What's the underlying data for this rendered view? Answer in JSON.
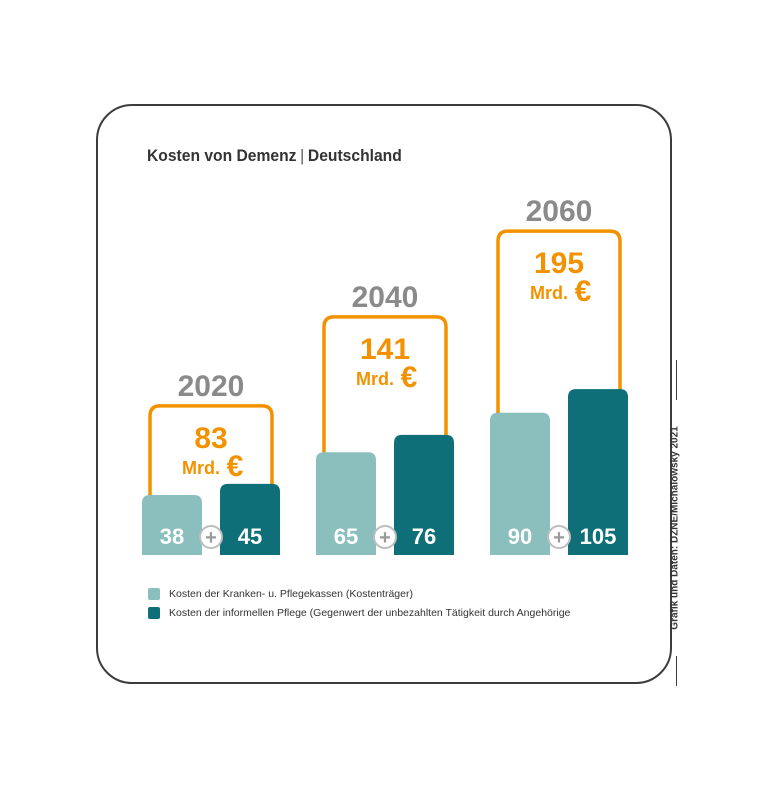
{
  "title": {
    "left": "Kosten von Demenz",
    "separator": "|",
    "right": "Deutschland"
  },
  "colors": {
    "light": "#8bbfbd",
    "dark": "#0e6f78",
    "accent": "#f39200",
    "year": "#8a8a8a",
    "plus_circle": "#bdbdbd"
  },
  "chart_data": {
    "type": "bar",
    "categories": [
      "2020",
      "2040",
      "2060"
    ],
    "series": [
      {
        "name": "Kosten der Kranken- u. Pflegekassen (Kostenträger)",
        "values": [
          38,
          65,
          90
        ]
      },
      {
        "name": "Kosten der informellen Pflege (Gegenwert der unbezahlten Tätigkeit durch Angehörige",
        "values": [
          45,
          76,
          105
        ]
      }
    ],
    "totals": [
      83,
      141,
      195
    ],
    "total_unit": "Mrd.",
    "currency_symbol": "€",
    "operator_symbol": "+",
    "title": "Kosten von Demenz | Deutschland"
  },
  "legend": [
    {
      "label": "Kosten der Kranken- u. Pflegekassen (Kostenträger)"
    },
    {
      "label": "Kosten der informellen Pflege (Gegenwert der unbezahlten Tätigkeit durch Angehörige"
    }
  ],
  "credit": "Grafik und Daten: DZNE/Michalowsky 2021"
}
